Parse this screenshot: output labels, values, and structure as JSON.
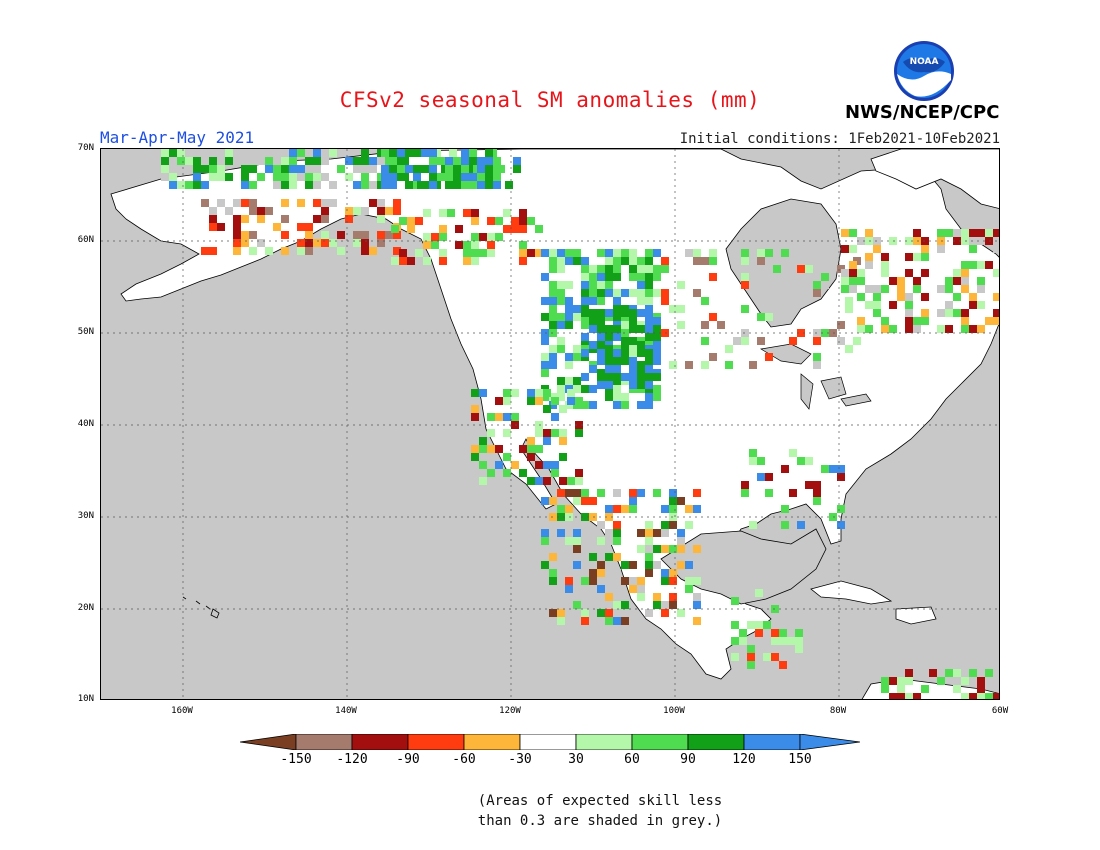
{
  "header": {
    "title": "CFSv2 seasonal SM anomalies (mm)",
    "period": "Mar-Apr-May 2021",
    "initial_conditions": "Initial conditions: 1Feb2021-10Feb2021",
    "agency": "NWS/NCEP/CPC",
    "logo_text": "NOAA"
  },
  "map": {
    "lat_labels": [
      "70N",
      "60N",
      "50N",
      "40N",
      "30N",
      "20N",
      "10N"
    ],
    "lon_labels": [
      "160W",
      "140W",
      "120W",
      "100W",
      "80W",
      "60W"
    ],
    "colors": {
      "ocean_grey": "#c8c8c8",
      "land_white": "#ffffff",
      "coast": "#000000"
    }
  },
  "legend": {
    "tick_labels": [
      "-150",
      "-120",
      "-90",
      "-60",
      "-30",
      "30",
      "60",
      "90",
      "120",
      "150"
    ],
    "colors": [
      "#7a3e22",
      "#a57b6e",
      "#a30f0f",
      "#ff3c10",
      "#fdb63a",
      "#ffffff",
      "#b4f7aa",
      "#50dc50",
      "#12a019",
      "#3a8ce8",
      "#3a8ce8"
    ]
  },
  "footnote": {
    "line1": "(Areas of expected skill less",
    "line2": "than 0.3 are shaded in grey.)"
  }
}
